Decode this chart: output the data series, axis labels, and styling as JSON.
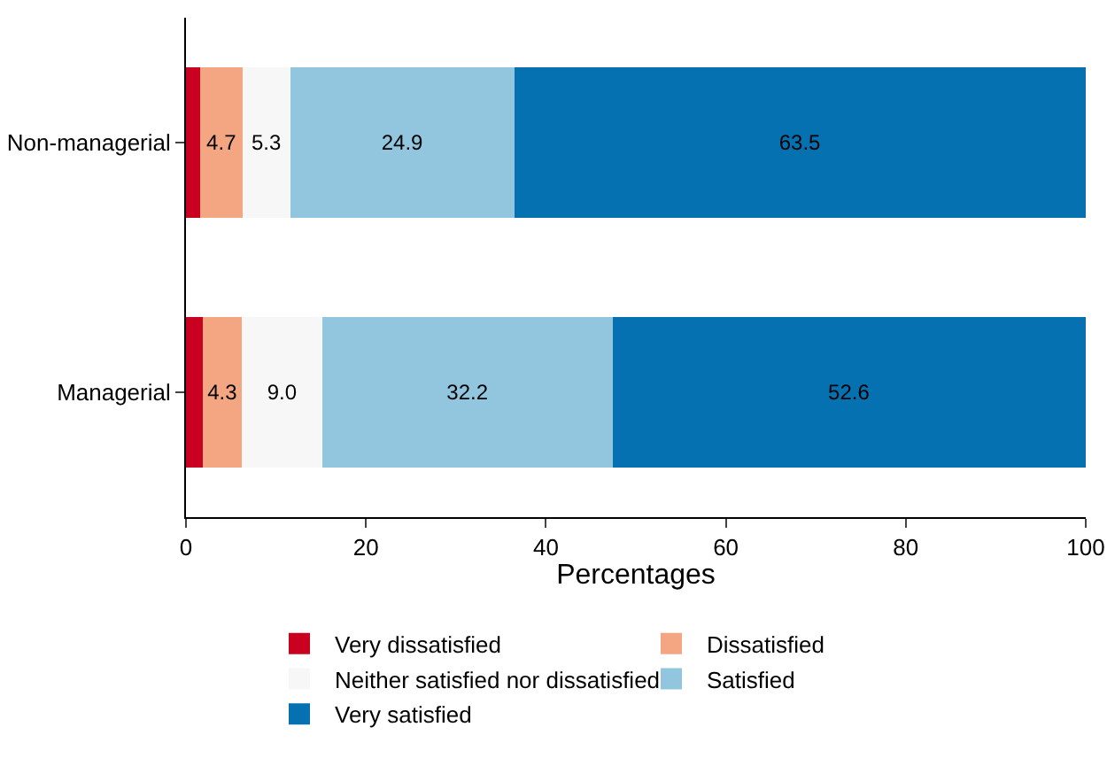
{
  "chart_data": {
    "type": "bar",
    "orientation": "horizontal",
    "stacked": true,
    "categories": [
      "Non-managerial",
      "Managerial"
    ],
    "series": [
      {
        "name": "Very dissatisfied",
        "color": "#ca0020",
        "values": [
          1.6,
          1.9
        ],
        "value_labels": [
          null,
          null
        ]
      },
      {
        "name": "Dissatisfied",
        "color": "#f4a582",
        "values": [
          4.7,
          4.3
        ],
        "value_labels": [
          "4.7",
          "4.3"
        ]
      },
      {
        "name": "Neither satisfied nor dissatisfied",
        "color": "#f7f7f7",
        "values": [
          5.3,
          9.0
        ],
        "value_labels": [
          "5.3",
          "9.0"
        ]
      },
      {
        "name": "Satisfied",
        "color": "#92c5de",
        "values": [
          24.9,
          32.2
        ],
        "value_labels": [
          "24.9",
          "32.2"
        ]
      },
      {
        "name": "Very satisfied",
        "color": "#0571b0",
        "values": [
          63.5,
          52.6
        ],
        "value_labels": [
          "63.5",
          "52.6"
        ]
      }
    ],
    "xlabel": "Percentages",
    "xlim": [
      0,
      100
    ],
    "xticks": [
      0,
      20,
      40,
      60,
      80,
      100
    ],
    "grid": false,
    "legend": "bottom"
  }
}
